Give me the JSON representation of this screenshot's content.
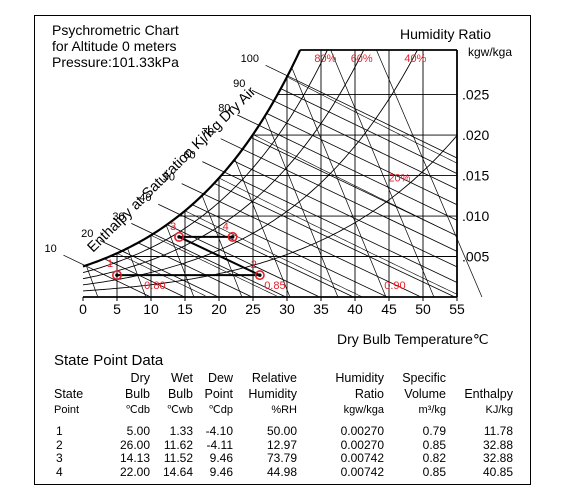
{
  "chart_data": {
    "type": "psychrometric",
    "title_lines": [
      "Psychrometric Chart",
      "for Altitude 0 meters",
      "Pressure:101.33kPa"
    ],
    "xlabel": "Dry Bulb Temperature℃",
    "ylabel_lines": [
      "Humidity  Ratio",
      "kgw/kga"
    ],
    "enthalpy_label": "Enthalpy at Saturation Kj/Kg Dry Air",
    "xlim": [
      0,
      55
    ],
    "ylim": [
      0,
      0.0305
    ],
    "xticks": [
      "0",
      "5",
      "10",
      "15",
      "20",
      "25",
      "30",
      "35",
      "40",
      "45",
      "50",
      "55"
    ],
    "yticks": [
      {
        "value": 0.005,
        "label": ".005"
      },
      {
        "value": 0.01,
        "label": ".010"
      },
      {
        "value": 0.015,
        "label": ".015"
      },
      {
        "value": 0.02,
        "label": ".020"
      },
      {
        "value": 0.025,
        "label": ".025"
      }
    ],
    "enthalpy_labels": [
      "10",
      "20",
      "30",
      "40",
      "50",
      "60",
      "70",
      "80",
      "90",
      "100"
    ],
    "rh_curve_labels": [
      {
        "rh": 0.8,
        "label": "80%"
      },
      {
        "rh": 0.6,
        "label": "60%"
      },
      {
        "rh": 0.4,
        "label": "40%"
      },
      {
        "rh": 0.2,
        "label": "20%"
      }
    ],
    "volume_labels": [
      {
        "v": 0.8,
        "label": "0.80"
      },
      {
        "v": 0.85,
        "label": "0.85"
      },
      {
        "v": 0.9,
        "label": "0.90"
      }
    ],
    "points": [
      {
        "id": "1",
        "tdb": 5.0,
        "w": 0.0027
      },
      {
        "id": "2",
        "tdb": 26.0,
        "w": 0.0027
      },
      {
        "id": "3",
        "tdb": 14.13,
        "w": 0.00742
      },
      {
        "id": "4",
        "tdb": 22.0,
        "w": 0.00742
      }
    ],
    "process_lines": [
      [
        "1",
        "2"
      ],
      [
        "2",
        "3"
      ],
      [
        "3",
        "4"
      ]
    ],
    "colors": {
      "line": "#000000",
      "label": "#e8202a",
      "point": "#e8202a"
    }
  },
  "table": {
    "title": "State Point Data",
    "headers": [
      [
        "",
        "State",
        "Point"
      ],
      [
        "Dry",
        "Bulb",
        "℃db"
      ],
      [
        "Wet",
        "Bulb",
        "℃wb"
      ],
      [
        "Dew",
        "Point",
        "℃dp"
      ],
      [
        "Relative",
        "Humidity",
        "%RH"
      ],
      [
        "Humidity",
        "Ratio",
        "kgw/kga"
      ],
      [
        "Specific",
        "Volume",
        "m³/kg"
      ],
      [
        "",
        "Enthalpy",
        "KJ/kg"
      ]
    ],
    "rows": [
      [
        "1",
        "5.00",
        "1.33",
        "-4.10",
        "50.00",
        "0.00270",
        "0.79",
        "11.78"
      ],
      [
        "2",
        "26.00",
        "11.62",
        "-4.11",
        "12.97",
        "0.00270",
        "0.85",
        "32.88"
      ],
      [
        "3",
        "14.13",
        "11.52",
        "9.46",
        "73.79",
        "0.00742",
        "0.82",
        "32.88"
      ],
      [
        "4",
        "22.00",
        "14.64",
        "9.46",
        "44.98",
        "0.00742",
        "0.85",
        "40.85"
      ]
    ]
  }
}
